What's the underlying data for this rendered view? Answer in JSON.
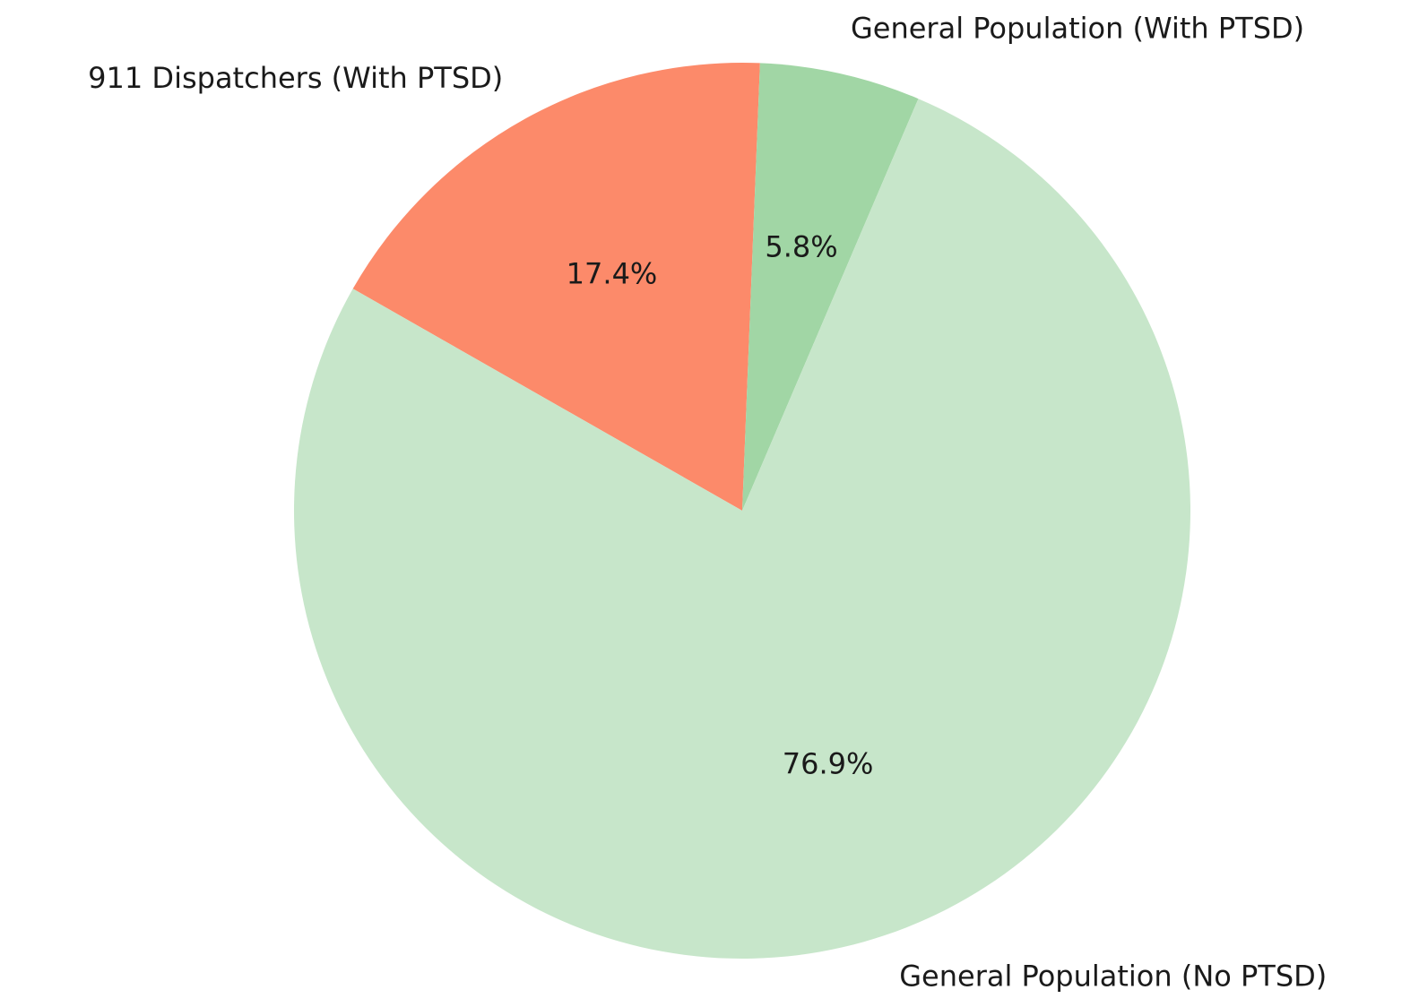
{
  "chart_data": {
    "type": "pie",
    "categories": [
      "911 Dispatchers (With PTSD)",
      "General Population (With PTSD)",
      "General Population (No PTSD)"
    ],
    "values": [
      17.4,
      5.8,
      76.9
    ],
    "value_labels": [
      "17.4%",
      "5.8%",
      "76.9%"
    ],
    "colors": [
      "#fc8a6a",
      "#a1d6a5",
      "#c7e6ca"
    ]
  }
}
